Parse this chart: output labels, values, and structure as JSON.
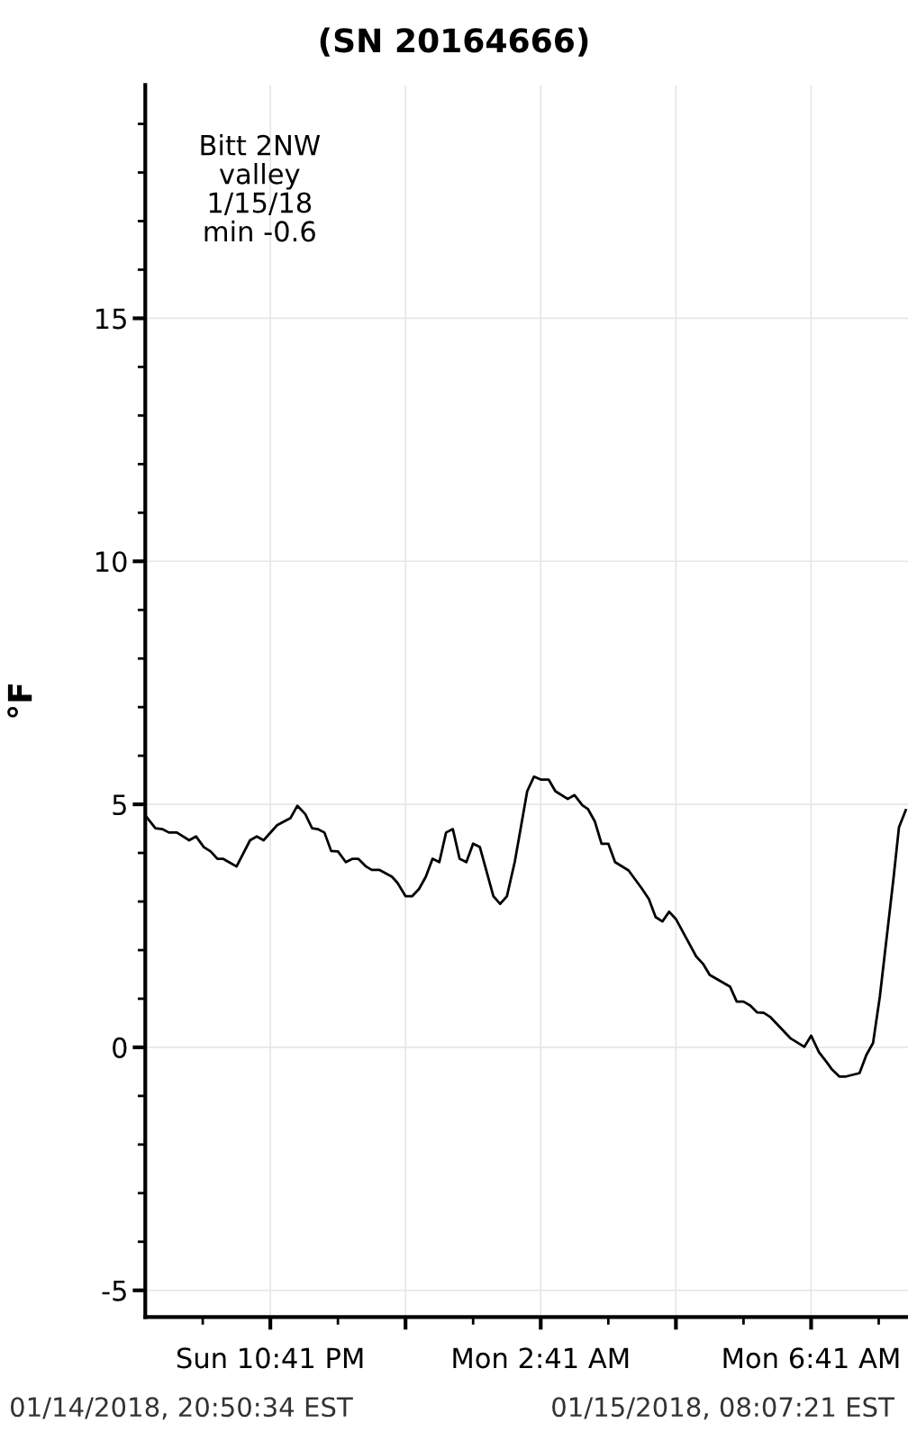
{
  "chart_data": {
    "type": "line",
    "title": "(SN 20164666)",
    "ylabel": "°F",
    "annotations": [
      "Bitt 2NW\nvalley\n1/15/18\nmin -0.6",
      "01/14/2018, 20:50:34 EST",
      "01/15/2018, 08:07:21 EST"
    ],
    "x": [
      "2018-01-14T20:50",
      "2018-01-14T20:59",
      "2018-01-14T21:05",
      "2018-01-14T21:11",
      "2018-01-14T21:18",
      "2018-01-14T21:29",
      "2018-01-14T21:35",
      "2018-01-14T21:42",
      "2018-01-14T21:48",
      "2018-01-14T21:54",
      "2018-01-14T21:59",
      "2018-01-14T22:11",
      "2018-01-14T22:23",
      "2018-01-14T22:29",
      "2018-01-14T22:35",
      "2018-01-14T22:47",
      "2018-01-14T22:59",
      "2018-01-14T23:05",
      "2018-01-14T23:12",
      "2018-01-14T23:18",
      "2018-01-14T23:23",
      "2018-01-14T23:29",
      "2018-01-14T23:35",
      "2018-01-14T23:41",
      "2018-01-14T23:48",
      "2018-01-14T23:54",
      "2018-01-14T23:59",
      "2018-01-15T00:06",
      "2018-01-15T00:11",
      "2018-01-15T00:18",
      "2018-01-15T00:29",
      "2018-01-15T00:34",
      "2018-01-15T00:41",
      "2018-01-15T00:47",
      "2018-01-15T00:53",
      "2018-01-15T00:59",
      "2018-01-15T01:05",
      "2018-01-15T01:11",
      "2018-01-15T01:17",
      "2018-01-15T01:23",
      "2018-01-15T01:29",
      "2018-01-15T01:35",
      "2018-01-15T01:41",
      "2018-01-15T01:47",
      "2018-01-15T01:59",
      "2018-01-15T02:05",
      "2018-01-15T02:11",
      "2018-01-15T02:18",
      "2018-01-15T02:29",
      "2018-01-15T02:35",
      "2018-01-15T02:41",
      "2018-01-15T02:48",
      "2018-01-15T02:54",
      "2018-01-15T03:05",
      "2018-01-15T03:11",
      "2018-01-15T03:18",
      "2018-01-15T03:23",
      "2018-01-15T03:29",
      "2018-01-15T03:35",
      "2018-01-15T03:41",
      "2018-01-15T03:47",
      "2018-01-15T03:59",
      "2018-01-15T04:05",
      "2018-01-15T04:11",
      "2018-01-15T04:17",
      "2018-01-15T04:23",
      "2018-01-15T04:29",
      "2018-01-15T04:35",
      "2018-01-15T04:41",
      "2018-01-15T04:48",
      "2018-01-15T04:59",
      "2018-01-15T05:05",
      "2018-01-15T05:11",
      "2018-01-15T05:29",
      "2018-01-15T05:35",
      "2018-01-15T05:41",
      "2018-01-15T05:47",
      "2018-01-15T05:53",
      "2018-01-15T05:59",
      "2018-01-15T06:05",
      "2018-01-15T06:23",
      "2018-01-15T06:35",
      "2018-01-15T06:41",
      "2018-01-15T06:48",
      "2018-01-15T06:55",
      "2018-01-15T06:59",
      "2018-01-15T07:06",
      "2018-01-15T07:12",
      "2018-01-15T07:24",
      "2018-01-15T07:30",
      "2018-01-15T07:36",
      "2018-01-15T07:42",
      "2018-01-15T07:54",
      "2018-01-15T07:59",
      "2018-01-15T08:05"
    ],
    "series": [
      {
        "color": "#000000",
        "values": [
          4.77,
          4.51,
          4.49,
          4.42,
          4.42,
          4.26,
          4.34,
          4.12,
          4.03,
          3.88,
          3.88,
          3.72,
          4.26,
          4.34,
          4.26,
          4.57,
          4.72,
          4.97,
          4.8,
          4.51,
          4.49,
          4.42,
          4.04,
          4.03,
          3.81,
          3.88,
          3.88,
          3.72,
          3.65,
          3.65,
          3.51,
          3.38,
          3.11,
          3.11,
          3.26,
          3.51,
          3.88,
          3.81,
          4.42,
          4.49,
          3.88,
          3.81,
          4.19,
          4.12,
          3.11,
          2.95,
          3.11,
          3.82,
          5.27,
          5.57,
          5.51,
          5.51,
          5.27,
          5.11,
          5.19,
          4.98,
          4.9,
          4.65,
          4.19,
          4.19,
          3.81,
          3.64,
          3.45,
          3.26,
          3.05,
          2.68,
          2.59,
          2.79,
          2.64,
          2.34,
          1.87,
          1.72,
          1.49,
          1.25,
          0.94,
          0.94,
          0.86,
          0.72,
          0.71,
          0.62,
          0.18,
          0.01,
          0.24,
          -0.1,
          -0.31,
          -0.44,
          -0.6,
          -0.6,
          -0.53,
          -0.16,
          0.09,
          1.04,
          3.45,
          4.53,
          4.88
        ]
      }
    ],
    "xlim": [
      "2018-01-14T20:50",
      "2018-01-15T08:07"
    ],
    "ylim": [
      -5.55,
      19.8
    ],
    "xticks": [
      {
        "value": "2018-01-14T22:41",
        "label": "Sun 10:41 PM"
      },
      {
        "value": "2018-01-15T00:41",
        "label": null
      },
      {
        "value": "2018-01-15T02:41",
        "label": "Mon 2:41 AM"
      },
      {
        "value": "2018-01-15T04:41",
        "label": null
      },
      {
        "value": "2018-01-15T06:41",
        "label": "Mon 6:41 AM"
      }
    ],
    "yticks": [
      -5,
      0,
      5,
      10,
      15
    ],
    "grid": true,
    "marker": "none",
    "line_style": "solid"
  }
}
